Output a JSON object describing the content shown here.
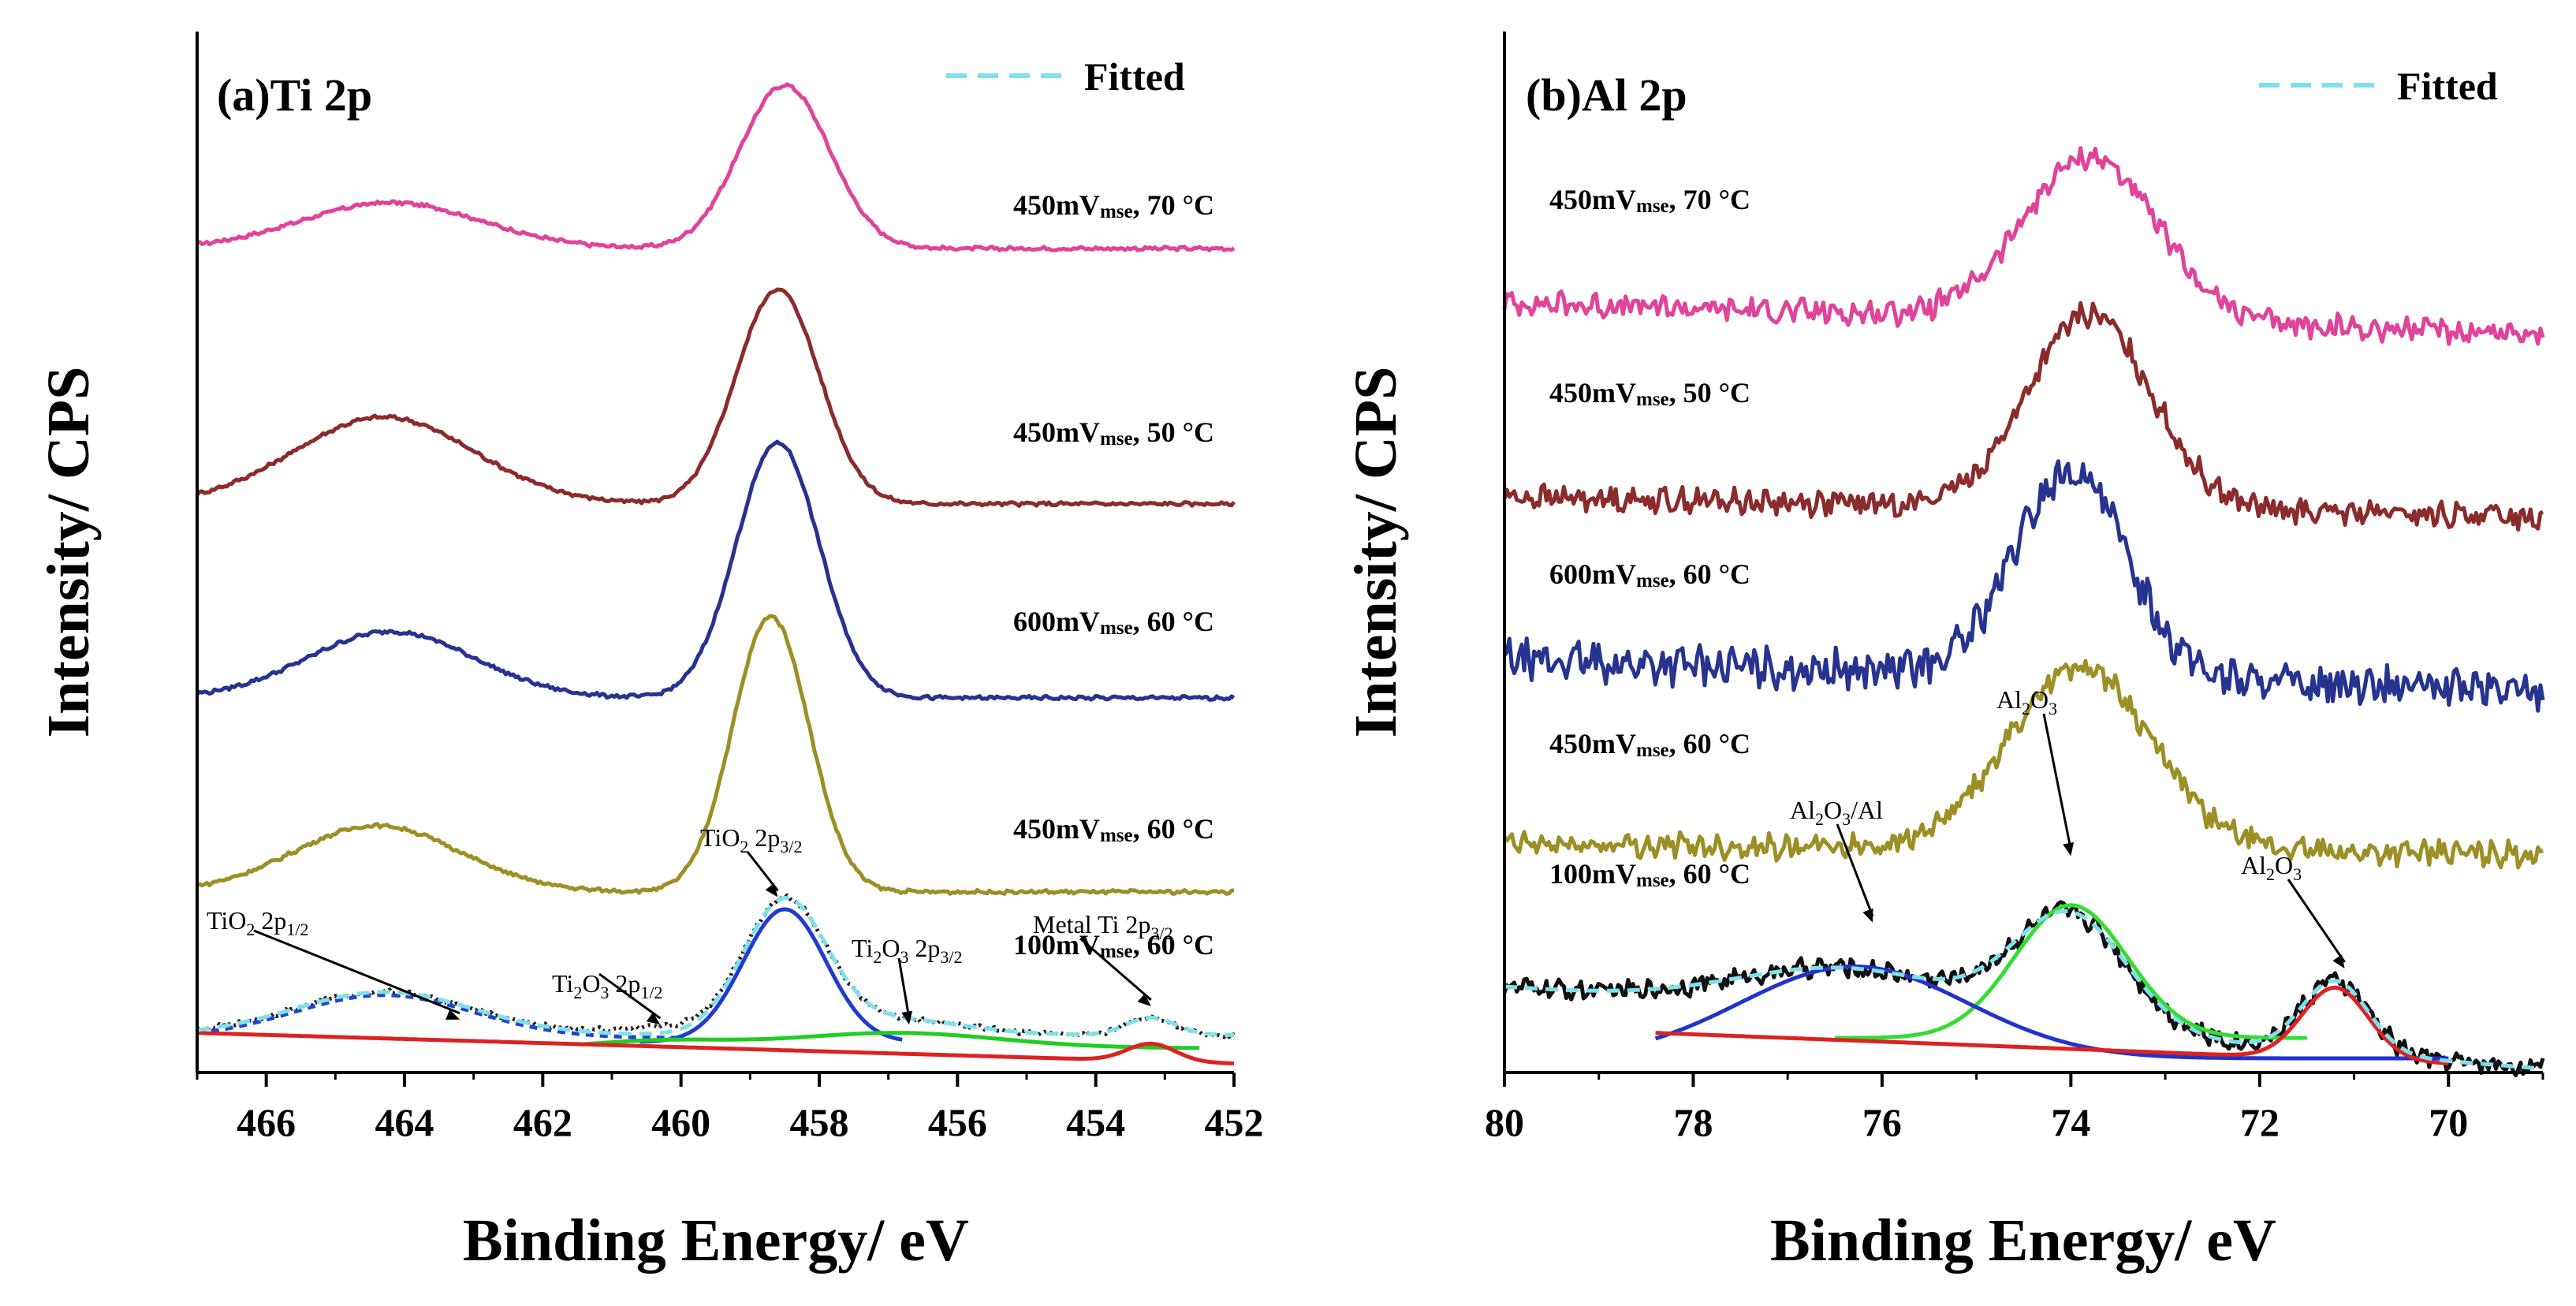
{
  "chart_data": [
    {
      "type": "line",
      "id": "ti",
      "title": "(a)Ti 2p",
      "xlabel": "Binding Energy/ eV",
      "ylabel": "Intensity/ CPS",
      "xlim": [
        467,
        452
      ],
      "ylim": [
        0,
        100
      ],
      "xticks": [
        466,
        464,
        462,
        460,
        458,
        456,
        454,
        452
      ],
      "legend": {
        "label": "Fitted",
        "color": "#7fe0ea",
        "dash": true,
        "position": "top-right"
      },
      "series": [
        {
          "name": "450mV_mse, 70 °C",
          "label_main": "450mV",
          "label_sub": "mse",
          "label_rest": ", 70 °C",
          "color": "#e0449a",
          "offset": 80,
          "peaks": [
            {
              "c": 458.5,
              "a": 16,
              "w": 0.65
            },
            {
              "c": 464.2,
              "a": 4.5,
              "w": 1.3
            }
          ],
          "base": 0.3,
          "noise": 0.15
        },
        {
          "name": "450mV_mse, 50 °C",
          "label_main": "450mV",
          "label_sub": "mse",
          "label_rest": ", 50 °C",
          "color": "#8b2b2b",
          "offset": 55,
          "peaks": [
            {
              "c": 458.6,
              "a": 21,
              "w": 0.6
            },
            {
              "c": 464.3,
              "a": 8.5,
              "w": 1.3
            }
          ],
          "base": 0.3,
          "noise": 0.15
        },
        {
          "name": "600mV_mse, 60 °C",
          "label_main": "600mV",
          "label_sub": "mse",
          "label_rest": ", 60 °C",
          "color": "#26338f",
          "offset": 36,
          "peaks": [
            {
              "c": 458.6,
              "a": 25,
              "w": 0.6
            },
            {
              "c": 464.2,
              "a": 6.5,
              "w": 1.2
            }
          ],
          "base": 0.3,
          "noise": 0.15
        },
        {
          "name": "450mV_mse, 60 °C",
          "label_main": "450mV",
          "label_sub": "mse",
          "label_rest": ", 60 °C",
          "color": "#9c8f26",
          "offset": 17,
          "peaks": [
            {
              "c": 458.7,
              "a": 27,
              "w": 0.55
            },
            {
              "c": 464.4,
              "a": 6.5,
              "w": 1.2
            }
          ],
          "base": 0.3,
          "noise": 0.15
        },
        {
          "name": "100mV_mse, 60 °C raw",
          "label_main": "100mV",
          "label_sub": "mse",
          "label_rest": ", 60 °C",
          "color": "#222222",
          "offset": 0,
          "peaks": [
            {
              "c": 458.5,
              "a": 13,
              "w": 0.6
            },
            {
              "c": 464.3,
              "a": 4.2,
              "w": 1.3
            },
            {
              "c": 453.2,
              "a": 1.7,
              "w": 0.35
            },
            {
              "c": 456.9,
              "a": 1.5,
              "w": 1.0
            },
            {
              "c": 460.3,
              "a": 0.6,
              "w": 0.8
            }
          ],
          "base": 3.3,
          "noise": 0.2,
          "dotted": true
        }
      ],
      "components": [
        {
          "name": "TiO2 2p3/2 component",
          "color": "#1f3bd1",
          "peaks": [
            {
              "c": 458.5,
              "a": 13,
              "w": 0.6
            }
          ],
          "base": 0,
          "xrange": [
            460.6,
            456.8
          ],
          "yshift": 2.6
        },
        {
          "name": "TiO2 2p1/2 component",
          "color": "#2244cc",
          "dash": "10 8",
          "peaks": [
            {
              "c": 464.3,
              "a": 4.2,
              "w": 1.3
            }
          ],
          "base": 0,
          "xrange": [
            467,
            460
          ],
          "yshift": 3.0
        },
        {
          "name": "Ti2O3 component",
          "color": "#22cc22",
          "peaks": [
            {
              "c": 456.9,
              "a": 1.5,
              "w": 1.5
            },
            {
              "c": 460.3,
              "a": 0.7,
              "w": 1.0
            }
          ],
          "base": 0,
          "xrange": [
            461.5,
            452.5
          ],
          "yshift": 2.0
        },
        {
          "name": "Metal Ti component",
          "color": "#dd2222",
          "peaks": [
            {
              "c": 453.2,
              "a": 1.7,
              "w": 0.35
            }
          ],
          "base": 0,
          "xrange": [
            467,
            452
          ],
          "yshift": 0,
          "slope": true
        },
        {
          "name": "Fitted",
          "color": "#7fe0ea",
          "dash": "16 10",
          "peaks": [
            {
              "c": 458.5,
              "a": 13,
              "w": 0.6
            },
            {
              "c": 464.3,
              "a": 4.2,
              "w": 1.3
            },
            {
              "c": 453.2,
              "a": 1.7,
              "w": 0.35
            },
            {
              "c": 456.9,
              "a": 1.5,
              "w": 1.0
            }
          ],
          "base": 3.3,
          "xrange": [
            467,
            452
          ],
          "yshift": 0
        }
      ],
      "annotations": [
        {
          "main": "TiO",
          "sub": "2",
          "rest": " 2p",
          "sub2": "1/2",
          "target_x": 463.2,
          "target_y": 4.5
        },
        {
          "main": "Ti",
          "sub": "2",
          "rest": "O",
          "sub2": "3",
          "tail": " 2p",
          "sub3": "1/2",
          "target_x": 460.3,
          "target_y": 4.0
        },
        {
          "main": "TiO",
          "sub": "2",
          "rest": " 2p",
          "sub2": "3/2",
          "target_x": 458.6,
          "target_y": 16.5
        },
        {
          "main": "Ti",
          "sub": "2",
          "rest": "O",
          "sub2": "3",
          "tail": " 2p",
          "sub3": "3/2",
          "target_x": 456.7,
          "target_y": 4.0
        },
        {
          "main": "Metal Ti 2p",
          "sub": "3/2",
          "target_x": 453.2,
          "target_y": 5.8
        }
      ]
    },
    {
      "type": "line",
      "id": "al",
      "title": "(b)Al 2p",
      "xlabel": "Binding Energy/ eV",
      "ylabel": "Intensity/ CPS",
      "xlim": [
        80,
        69
      ],
      "ylim": [
        0,
        100
      ],
      "xticks": [
        80,
        78,
        76,
        74,
        72,
        70
      ],
      "legend": {
        "label": "Fitted",
        "color": "#7fe0ea",
        "dash": true,
        "position": "top-right"
      },
      "series": [
        {
          "name": "450mV_mse, 70 °C",
          "label_main": "450mV",
          "label_sub": "mse",
          "label_rest": ", 70 °C",
          "color": "#e0449a",
          "offset": 75,
          "peaks": [
            {
              "c": 73.8,
              "a": 16,
              "w": 0.7
            }
          ],
          "base": 0,
          "noise": 1.0,
          "tilt": -3
        },
        {
          "name": "450mV_mse, 50 °C",
          "label_main": "450mV",
          "label_sub": "mse",
          "label_rest": ", 50 °C",
          "color": "#8b2b2b",
          "offset": 56,
          "peaks": [
            {
              "c": 73.8,
              "a": 19,
              "w": 0.65
            }
          ],
          "base": 0,
          "noise": 1.0,
          "tilt": -2
        },
        {
          "name": "600mV_mse, 60 °C",
          "label_main": "600mV",
          "label_sub": "mse",
          "label_rest": ", 60 °C",
          "color": "#26338f",
          "offset": 40,
          "peaks": [
            {
              "c": 74.0,
              "a": 20,
              "w": 0.6
            }
          ],
          "base": 0,
          "noise": 1.6,
          "tilt": -3
        },
        {
          "name": "450mV_mse, 60 °C",
          "label_main": "450mV",
          "label_sub": "mse",
          "label_rest": ", 60 °C",
          "color": "#9c8f26",
          "offset": 22,
          "peaks": [
            {
              "c": 73.9,
              "a": 18,
              "w": 0.75
            }
          ],
          "base": 0,
          "noise": 1.0,
          "tilt": -1
        },
        {
          "name": "100mV_mse, 60 °C raw",
          "label_main": "100mV",
          "label_sub": "mse",
          "label_rest": ", 60 °C",
          "color": "#111111",
          "offset": 0,
          "peaks": [
            {
              "c": 74.0,
              "a": 11,
              "w": 0.6
            },
            {
              "c": 76.3,
              "a": 4.5,
              "w": 1.2
            },
            {
              "c": 71.2,
              "a": 7,
              "w": 0.35
            }
          ],
          "base": 8,
          "noise": 0.8,
          "tilt": -8
        }
      ],
      "components": [
        {
          "name": "Al2O3 component",
          "color": "#33dd33",
          "peaks": [
            {
              "c": 74.0,
              "a": 13,
              "w": 0.6
            }
          ],
          "base": 0,
          "xrange": [
            76.5,
            71.5
          ],
          "yshift": 3
        },
        {
          "name": "Al2O3/Al component",
          "color": "#2233cc",
          "peaks": [
            {
              "c": 76.3,
              "a": 9,
              "w": 1.2
            }
          ],
          "base": 0,
          "xrange": [
            78.4,
            70
          ],
          "yshift": 1
        },
        {
          "name": "Al2O3 (low) component",
          "color": "#dd2222",
          "peaks": [
            {
              "c": 71.2,
              "a": 7,
              "w": 0.35
            }
          ],
          "base": 0,
          "xrange": [
            78.4,
            70
          ],
          "yshift": 0,
          "slope": true
        },
        {
          "name": "Fitted",
          "color": "#7fe0ea",
          "dash": "16 10",
          "peaks": [
            {
              "c": 74.0,
              "a": 11,
              "w": 0.6
            },
            {
              "c": 76.3,
              "a": 4.5,
              "w": 1.2
            },
            {
              "c": 71.2,
              "a": 7,
              "w": 0.35
            }
          ],
          "base": 8,
          "xrange": [
            80,
            69
          ],
          "yshift": 0,
          "tilt": -8
        }
      ],
      "annotations": [
        {
          "main": "Al",
          "sub": "2",
          "rest": "O",
          "sub2": "3",
          "tail": "/Al",
          "target_x": 76.1,
          "target_y": 14.0
        },
        {
          "main": "Al",
          "sub": "2",
          "rest": "O",
          "sub2": "3",
          "target_x": 74.0,
          "target_y": 20.5
        },
        {
          "main": "Al",
          "sub": "2",
          "rest": "O",
          "sub2": "3",
          "target_x": 71.1,
          "target_y": 9.5
        }
      ]
    }
  ]
}
